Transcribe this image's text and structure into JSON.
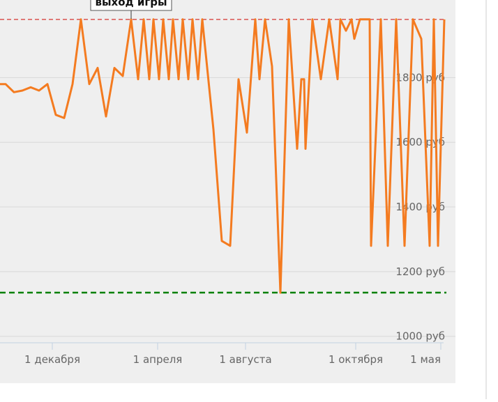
{
  "chart_data": {
    "type": "line",
    "annotation": {
      "text": "выход игры",
      "x": 188
    },
    "x": [
      0,
      8,
      20,
      32,
      44,
      56,
      68,
      80,
      92,
      104,
      116,
      128,
      140,
      152,
      164,
      176,
      188,
      198,
      206,
      214,
      220,
      228,
      234,
      242,
      248,
      256,
      262,
      270,
      276,
      284,
      290,
      306,
      318,
      330,
      342,
      354,
      366,
      372,
      380,
      390,
      402,
      414,
      426,
      432,
      436,
      438,
      448,
      460,
      472,
      484,
      488,
      496,
      504,
      508,
      516,
      530,
      532,
      546,
      556,
      568,
      580,
      592,
      604,
      616,
      622,
      628,
      637
    ],
    "series": [
      {
        "color": "#f47b20",
        "values": [
          1780,
          1780,
          1755,
          1760,
          1770,
          1760,
          1780,
          1685,
          1675,
          1780,
          1980,
          1780,
          1830,
          1680,
          1830,
          1805,
          1980,
          1795,
          1980,
          1795,
          1980,
          1795,
          1980,
          1795,
          1980,
          1795,
          1980,
          1795,
          1980,
          1795,
          1980,
          1640,
          1295,
          1280,
          1795,
          1630,
          1980,
          1795,
          1980,
          1835,
          1135,
          1980,
          1580,
          1795,
          1795,
          1580,
          1980,
          1795,
          1980,
          1795,
          1980,
          1945,
          1980,
          1920,
          1980,
          1980,
          1280,
          1980,
          1280,
          1980,
          1280,
          1980,
          1920,
          1280,
          1980,
          1280,
          1980
        ]
      }
    ],
    "reference_lines": [
      {
        "value": 1980,
        "color": "#d9534f"
      },
      {
        "value": 1135,
        "color": "#008000"
      }
    ],
    "xlim": [
      0,
      640
    ],
    "xticks": [
      {
        "value": 75,
        "label": "1 декабря"
      },
      {
        "value": 226,
        "label": "1 апреля"
      },
      {
        "value": 352,
        "label": "1 августа"
      },
      {
        "value": 510,
        "label": "1 октября"
      },
      {
        "value": 632,
        "label": "1 мая"
      }
    ],
    "ylim": [
      980,
      2040
    ],
    "yticks": [
      {
        "value": 1000,
        "label": "1000 руб"
      },
      {
        "value": 1200,
        "label": "1200 руб"
      },
      {
        "value": 1400,
        "label": "1400 руб"
      },
      {
        "value": 1600,
        "label": "1600 руб"
      },
      {
        "value": 1800,
        "label": "1800 руб"
      }
    ],
    "grid": true
  }
}
